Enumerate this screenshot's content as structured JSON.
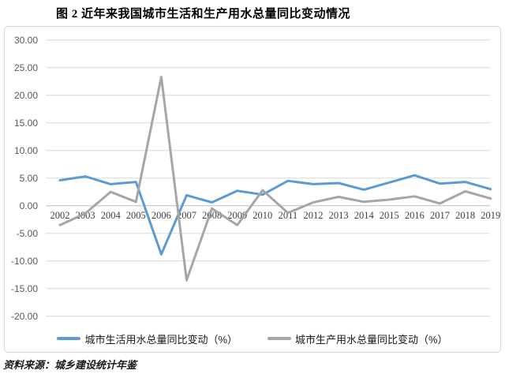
{
  "title": "图 2  近年来我国城市生活和生产用水总量同比变动情况",
  "source_note": "资料来源：城乡建设统计年鉴",
  "legend": {
    "items": [
      {
        "label": "城市生活用水总量同比变动（%）",
        "swatch": "blue-line"
      },
      {
        "label": "城市生产用水总量同比变动（%）",
        "swatch": "gray-line"
      }
    ]
  },
  "chart_data": {
    "type": "line",
    "title": "图 2  近年来我国城市生活和生产用水总量同比变动情况",
    "xlabel": "",
    "ylabel": "",
    "x": [
      2002,
      2003,
      2004,
      2005,
      2006,
      2007,
      2008,
      2009,
      2010,
      2011,
      2012,
      2013,
      2014,
      2015,
      2016,
      2017,
      2018,
      2019
    ],
    "series": [
      {
        "name": "城市生活用水总量同比变动（%）",
        "color": "#5B9BD5",
        "values": [
          4.6,
          5.3,
          3.9,
          4.3,
          -8.8,
          1.9,
          0.6,
          2.7,
          2.0,
          4.5,
          3.9,
          4.1,
          2.9,
          4.2,
          5.5,
          4.0,
          4.3,
          3.0
        ]
      },
      {
        "name": "城市生产用水总量同比变动（%）",
        "color": "#A6A6A6",
        "values": [
          -3.5,
          -1.4,
          2.5,
          0.7,
          23.3,
          -13.5,
          -0.5,
          -3.5,
          2.8,
          -1.3,
          0.6,
          1.6,
          0.7,
          1.1,
          1.7,
          0.4,
          2.6,
          1.3
        ]
      }
    ],
    "ylim": [
      -20,
      30
    ],
    "ytick_step": 5,
    "ytick_labels": [
      "30.00",
      "25.00",
      "20.00",
      "15.00",
      "10.00",
      "5.00",
      "0.00",
      "-5.00",
      "-10.00",
      "-15.00",
      "-20.00"
    ],
    "grid": true,
    "legend_position": "bottom",
    "colors": {
      "grid": "#d9d9d9",
      "zero_axis": "#bfbfbf",
      "tick_text": "#595959"
    }
  }
}
